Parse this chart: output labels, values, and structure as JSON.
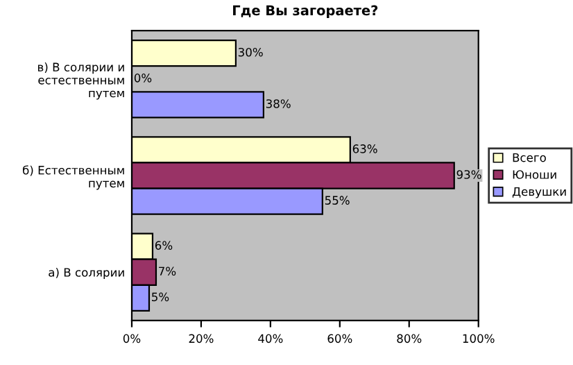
{
  "chart_data": {
    "type": "bar",
    "orientation": "horizontal",
    "title": "Где Вы загораете?",
    "categories": [
      "в) В солярии и естественным путем",
      "б) Естественным путем",
      "а) В солярии"
    ],
    "series": [
      {
        "name": "Всего",
        "color": "#ffffcc",
        "values": [
          30,
          63,
          6
        ],
        "value_labels": [
          "30%",
          "63%",
          "6%"
        ]
      },
      {
        "name": "Юноши",
        "color": "#993366",
        "values": [
          0,
          93,
          7
        ],
        "value_labels": [
          "0%",
          "93%",
          "7%"
        ]
      },
      {
        "name": "Девушки",
        "color": "#9999ff",
        "values": [
          38,
          55,
          5
        ],
        "value_labels": [
          "38%",
          "55%",
          "5%"
        ]
      }
    ],
    "xlim": [
      0,
      100
    ],
    "xticks": [
      {
        "value": 0,
        "label": "0%"
      },
      {
        "value": 20,
        "label": "20%"
      },
      {
        "value": 40,
        "label": "40%"
      },
      {
        "value": 60,
        "label": "60%"
      },
      {
        "value": 80,
        "label": "80%"
      },
      {
        "value": 100,
        "label": "100%"
      }
    ],
    "grid": false,
    "legend": "right"
  }
}
